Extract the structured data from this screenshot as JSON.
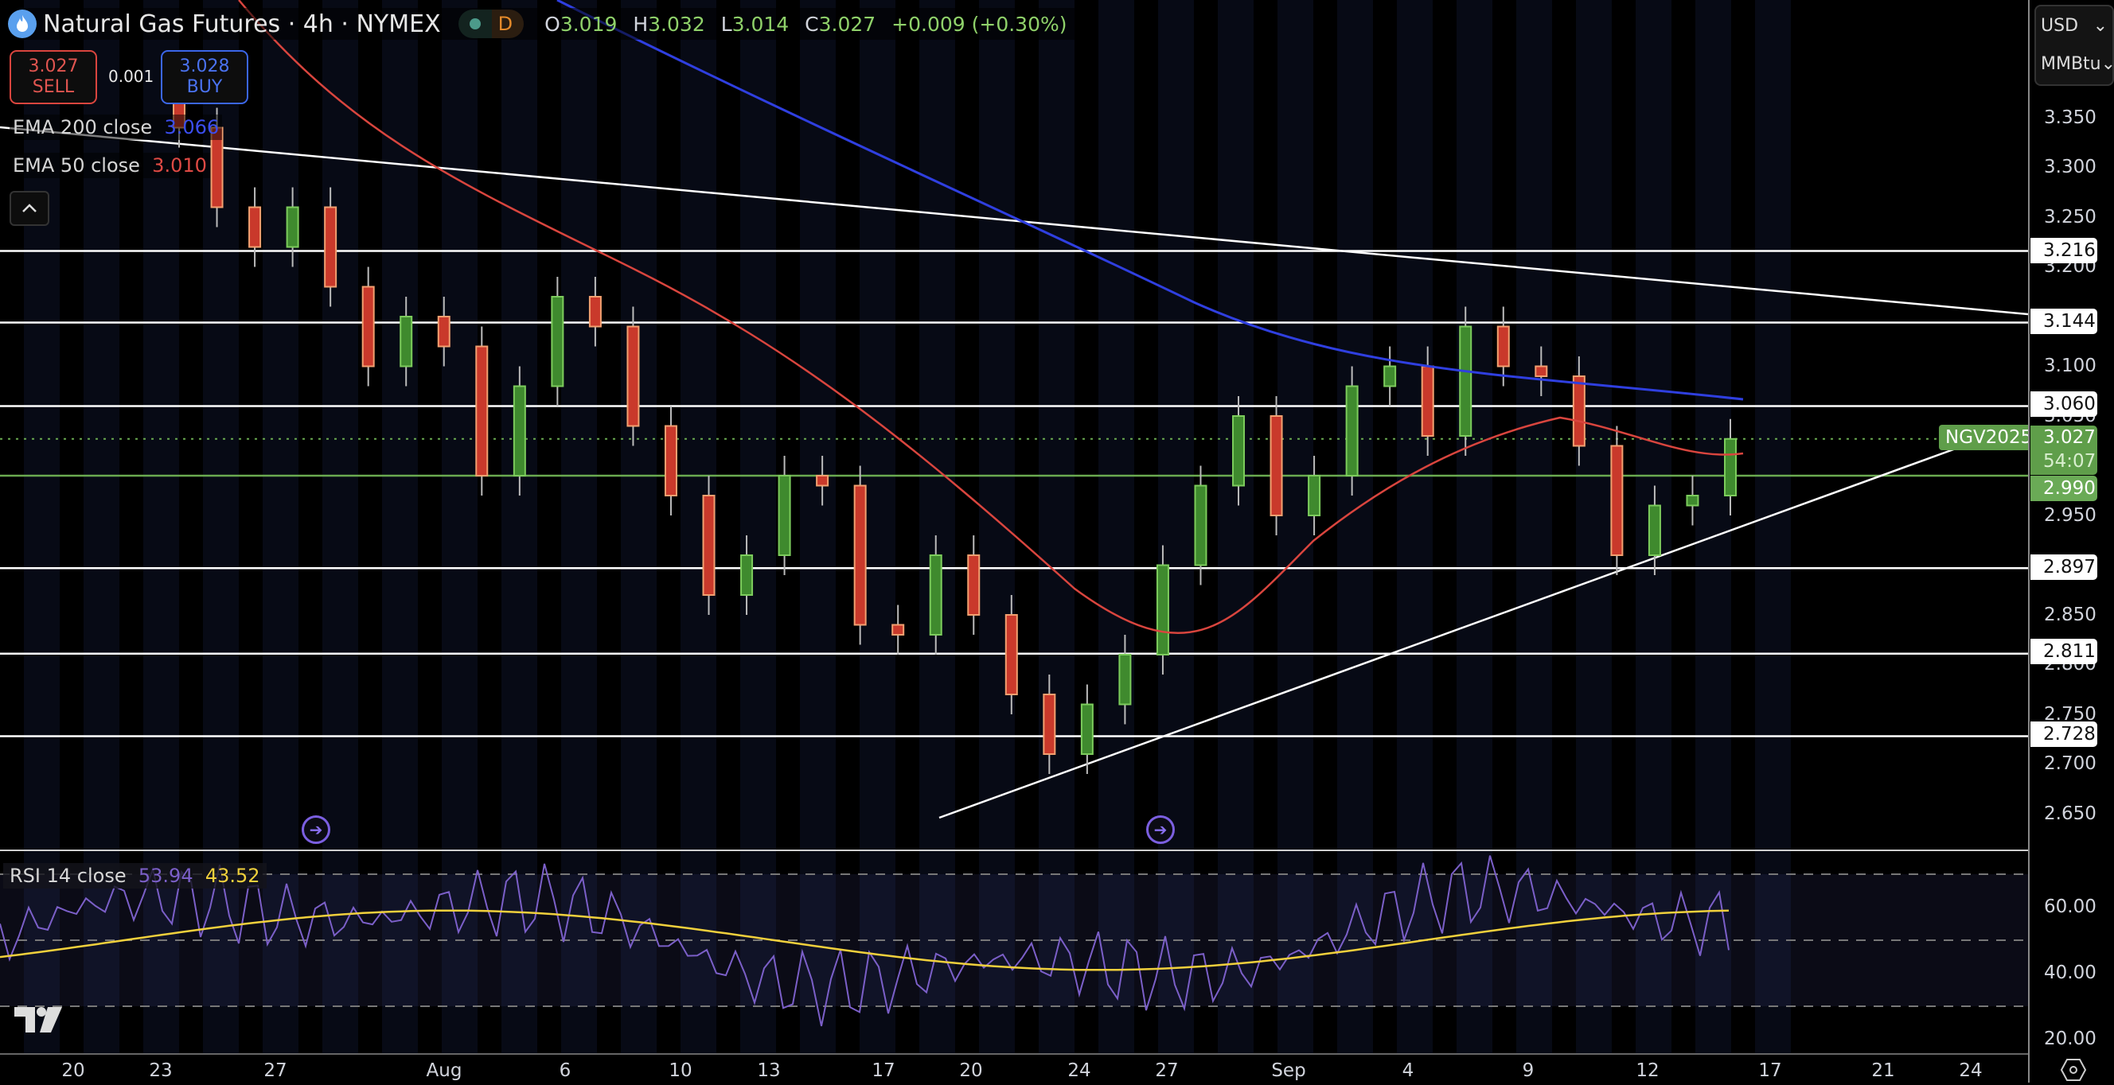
{
  "header": {
    "title": "Natural Gas Futures · 4h · NYMEX",
    "status_badge": "D",
    "ohlc": {
      "o_label": "O",
      "o": "3.019",
      "h_label": "H",
      "h": "3.032",
      "l_label": "L",
      "l": "3.014",
      "c_label": "C",
      "c": "3.027",
      "change": "+0.009 (+0.30%)"
    }
  },
  "trade": {
    "sell_price": "3.027",
    "sell_label": "SELL",
    "buy_price": "3.028",
    "buy_label": "BUY",
    "spread": "0.001"
  },
  "indicators": {
    "ema200_label": "EMA 200 close",
    "ema200_value": "3.066",
    "ema50_label": "EMA 50 close",
    "ema50_value": "3.010",
    "rsi_label": "RSI 14 close",
    "rsi_value": "53.94",
    "rsi_ma_value": "43.52"
  },
  "price_axis": {
    "currency": "USD",
    "unit": "MMBtu",
    "ticks": [
      "3.350",
      "3.300",
      "3.250",
      "3.200",
      "3.100",
      "3.050",
      "2.950",
      "2.850",
      "2.800",
      "2.750",
      "2.700",
      "2.650"
    ],
    "level_tags": [
      "3.216",
      "3.144",
      "3.060",
      "2.897",
      "2.811",
      "2.728"
    ],
    "support_tag": "2.990",
    "current_price": "3.027",
    "countdown": "54:07",
    "symbol": "NGV2025"
  },
  "rsi_axis": {
    "ticks": [
      "60.00",
      "40.00",
      "20.00"
    ]
  },
  "time_axis": {
    "labels": [
      "20",
      "23",
      "27",
      "Aug",
      "6",
      "10",
      "13",
      "17",
      "20",
      "24",
      "27",
      "Sep",
      "4",
      "9",
      "12",
      "17",
      "21",
      "24"
    ]
  },
  "colors": {
    "up": "#6bbf4e",
    "down": "#c9392b",
    "ema200": "#2f3fe0",
    "ema50": "#d9453e",
    "rsi": "#7b5fc8",
    "rsi_ma": "#f0d03c",
    "levels": "#ffffff",
    "support": "#6aaa50"
  },
  "chart_data": [
    {
      "type": "candlestick",
      "title": "Natural Gas Futures · 4h · NYMEX",
      "xlabel": "",
      "ylabel": "USD / MMBtu",
      "ylim": [
        2.62,
        3.4
      ],
      "x_ticks": [
        "Jul 20",
        "Jul 23",
        "Jul 27",
        "Aug",
        "Aug 6",
        "Aug 10",
        "Aug 13",
        "Aug 17",
        "Aug 20",
        "Aug 24",
        "Aug 27",
        "Sep",
        "Sep 4",
        "Sep 9",
        "Sep 12",
        "Sep 17",
        "Sep 21",
        "Sep 24"
      ],
      "last_bar": {
        "open": 3.019,
        "high": 3.032,
        "low": 3.014,
        "close": 3.027,
        "change": 0.009,
        "change_pct": 0.3
      },
      "approx_close_path": [
        {
          "date": "Jul 22",
          "close": 3.34
        },
        {
          "date": "Jul 23",
          "close": 3.26
        },
        {
          "date": "Jul 24",
          "close": 3.22
        },
        {
          "date": "Jul 26",
          "close": 3.26
        },
        {
          "date": "Jul 28",
          "close": 3.18
        },
        {
          "date": "Jul 30",
          "close": 3.1
        },
        {
          "date": "Aug 1",
          "close": 3.15
        },
        {
          "date": "Aug 3",
          "close": 3.12
        },
        {
          "date": "Aug 4",
          "close": 2.99
        },
        {
          "date": "Aug 6",
          "close": 3.08
        },
        {
          "date": "Aug 7",
          "close": 3.17
        },
        {
          "date": "Aug 9",
          "close": 3.14
        },
        {
          "date": "Aug 11",
          "close": 3.04
        },
        {
          "date": "Aug 12",
          "close": 2.97
        },
        {
          "date": "Aug 13",
          "close": 2.87
        },
        {
          "date": "Aug 15",
          "close": 2.91
        },
        {
          "date": "Aug 16",
          "close": 2.99
        },
        {
          "date": "Aug 17",
          "close": 2.98
        },
        {
          "date": "Aug 19",
          "close": 2.84
        },
        {
          "date": "Aug 21",
          "close": 2.83
        },
        {
          "date": "Aug 22",
          "close": 2.91
        },
        {
          "date": "Aug 23",
          "close": 2.85
        },
        {
          "date": "Aug 24",
          "close": 2.77
        },
        {
          "date": "Aug 25",
          "close": 2.71
        },
        {
          "date": "Aug 26",
          "close": 2.76
        },
        {
          "date": "Aug 27",
          "close": 2.81
        },
        {
          "date": "Aug 28",
          "close": 2.9
        },
        {
          "date": "Aug 30",
          "close": 2.98
        },
        {
          "date": "Sep 1",
          "close": 3.05
        },
        {
          "date": "Sep 2",
          "close": 2.95
        },
        {
          "date": "Sep 3",
          "close": 2.99
        },
        {
          "date": "Sep 4",
          "close": 3.08
        },
        {
          "date": "Sep 6",
          "close": 3.1
        },
        {
          "date": "Sep 7",
          "close": 3.03
        },
        {
          "date": "Sep 8",
          "close": 3.14
        },
        {
          "date": "Sep 9",
          "close": 3.1
        },
        {
          "date": "Sep 10",
          "close": 3.09
        },
        {
          "date": "Sep 11",
          "close": 3.02
        },
        {
          "date": "Sep 12",
          "close": 2.91
        },
        {
          "date": "Sep 13",
          "close": 2.96
        },
        {
          "date": "Sep 14",
          "close": 2.97
        },
        {
          "date": "Sep 15",
          "close": 3.027
        }
      ],
      "overlays": [
        {
          "name": "EMA 200 close",
          "value": 3.066,
          "color": "#2f3fe0"
        },
        {
          "name": "EMA 50 close",
          "value": 3.01,
          "color": "#d9453e"
        }
      ],
      "horizontal_levels": [
        3.216,
        3.144,
        3.06,
        2.99,
        2.897,
        2.811,
        2.728
      ],
      "trendlines": [
        {
          "name": "descending resistance",
          "from": {
            "date": "Jul 20",
            "price": 3.33
          },
          "to": {
            "date": "Sep 21",
            "price": 3.148
          }
        },
        {
          "name": "ascending support",
          "from": {
            "date": "Aug 18",
            "price": 2.64
          },
          "to": {
            "date": "Sep 19",
            "price": 3.02
          }
        }
      ],
      "grid": false,
      "legend_position": "top-left"
    },
    {
      "type": "line",
      "title": "RSI 14 close",
      "ylim": [
        15,
        75
      ],
      "y_ticks": [
        60,
        40,
        20
      ],
      "bands": [
        70,
        50,
        30
      ],
      "series": [
        {
          "name": "RSI",
          "last": 53.94,
          "color": "#7b5fc8"
        },
        {
          "name": "RSI MA",
          "last": 43.52,
          "color": "#f0d03c"
        }
      ]
    }
  ]
}
